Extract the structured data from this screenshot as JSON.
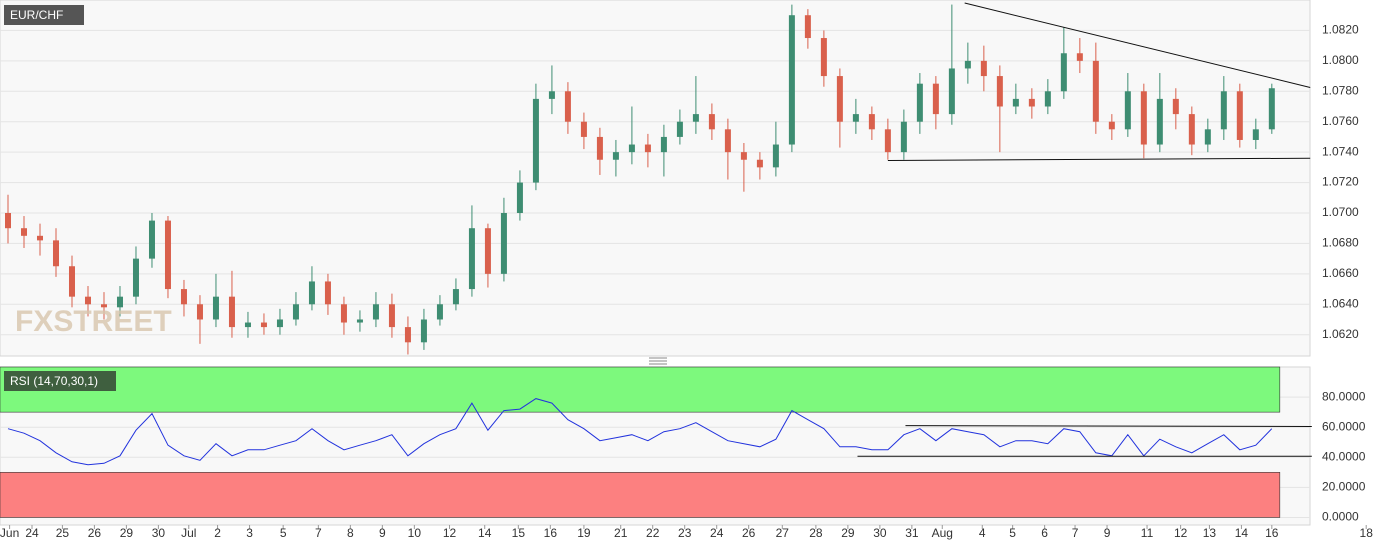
{
  "chart_data": {
    "type": "candlestick",
    "title": "EUR/CHF",
    "watermark": "FXSTREET",
    "up_color": "#3e8d72",
    "down_color": "#d9604c",
    "grid": true,
    "xlim": [
      0,
      86.7
    ],
    "xticks": [
      {
        "value": 0.6,
        "label": "Jun"
      },
      {
        "value": 2,
        "label": "24"
      },
      {
        "value": 3.9,
        "label": "25"
      },
      {
        "value": 5.9,
        "label": "26"
      },
      {
        "value": 7.9,
        "label": "29"
      },
      {
        "value": 9.9,
        "label": "30"
      },
      {
        "value": 11.8,
        "label": "Jul"
      },
      {
        "value": 13.6,
        "label": "2"
      },
      {
        "value": 15.6,
        "label": "3"
      },
      {
        "value": 17.7,
        "label": "5"
      },
      {
        "value": 19.9,
        "label": "7"
      },
      {
        "value": 21.9,
        "label": "8"
      },
      {
        "value": 23.9,
        "label": "9"
      },
      {
        "value": 25.9,
        "label": "10"
      },
      {
        "value": 28.1,
        "label": "12"
      },
      {
        "value": 30.3,
        "label": "14"
      },
      {
        "value": 32.4,
        "label": "15"
      },
      {
        "value": 34.4,
        "label": "16"
      },
      {
        "value": 36.5,
        "label": "19"
      },
      {
        "value": 38.8,
        "label": "21"
      },
      {
        "value": 40.8,
        "label": "22"
      },
      {
        "value": 42.8,
        "label": "23"
      },
      {
        "value": 44.8,
        "label": "24"
      },
      {
        "value": 46.8,
        "label": "26"
      },
      {
        "value": 48.9,
        "label": "27"
      },
      {
        "value": 51,
        "label": "28"
      },
      {
        "value": 53,
        "label": "29"
      },
      {
        "value": 55,
        "label": "30"
      },
      {
        "value": 57,
        "label": "31"
      },
      {
        "value": 58.9,
        "label": "Aug"
      },
      {
        "value": 61.4,
        "label": "4"
      },
      {
        "value": 63.3,
        "label": "5"
      },
      {
        "value": 65.3,
        "label": "6"
      },
      {
        "value": 67.2,
        "label": "7"
      },
      {
        "value": 69.2,
        "label": "9"
      },
      {
        "value": 71.7,
        "label": "11"
      },
      {
        "value": 73.8,
        "label": "12"
      },
      {
        "value": 75.6,
        "label": "13"
      },
      {
        "value": 77.6,
        "label": "14"
      },
      {
        "value": 79.5,
        "label": "16"
      },
      {
        "value": 85.4,
        "label": "18"
      }
    ],
    "ylim": [
      1.0606,
      1.084
    ],
    "yticks": [
      {
        "value": 1.062,
        "label": "1.0620"
      },
      {
        "value": 1.064,
        "label": "1.0640"
      },
      {
        "value": 1.066,
        "label": "1.0660"
      },
      {
        "value": 1.068,
        "label": "1.0680"
      },
      {
        "value": 1.07,
        "label": "1.0700"
      },
      {
        "value": 1.072,
        "label": "1.0720"
      },
      {
        "value": 1.074,
        "label": "1.0740"
      },
      {
        "value": 1.076,
        "label": "1.0760"
      },
      {
        "value": 1.078,
        "label": "1.0780"
      },
      {
        "value": 1.08,
        "label": "1.0800"
      },
      {
        "value": 1.082,
        "label": "1.0820"
      }
    ],
    "open": [
      1.07,
      1.069,
      1.0685,
      1.0682,
      1.0665,
      1.0645,
      1.064,
      1.0638,
      1.0645,
      1.067,
      1.0695,
      1.065,
      1.064,
      1.063,
      1.0645,
      1.0625,
      1.0628,
      1.0625,
      1.063,
      1.064,
      1.0655,
      1.064,
      1.0628,
      1.063,
      1.064,
      1.0625,
      1.0615,
      1.063,
      1.064,
      1.065,
      1.069,
      1.066,
      1.07,
      1.072,
      1.0775,
      1.078,
      1.076,
      1.075,
      1.0735,
      1.074,
      1.0745,
      1.074,
      1.075,
      1.076,
      1.0765,
      1.0755,
      1.074,
      1.0735,
      1.073,
      1.0745,
      1.083,
      1.0815,
      1.079,
      1.076,
      1.0765,
      1.0755,
      1.074,
      1.076,
      1.0785,
      1.0765,
      1.0795,
      1.08,
      1.079,
      1.077,
      1.0775,
      1.077,
      1.078,
      1.0805,
      1.08,
      1.076,
      1.0755,
      1.078,
      1.0745,
      1.0775,
      1.0765,
      1.0745,
      1.0755,
      1.078,
      1.0748,
      1.0755
    ],
    "high": [
      1.0712,
      1.0698,
      1.0693,
      1.069,
      1.0672,
      1.0652,
      1.0648,
      1.0652,
      1.0678,
      1.07,
      1.0698,
      1.0656,
      1.0646,
      1.066,
      1.0662,
      1.0635,
      1.0634,
      1.0637,
      1.0648,
      1.0665,
      1.066,
      1.0645,
      1.0636,
      1.0648,
      1.0647,
      1.0632,
      1.0637,
      1.0646,
      1.0657,
      1.0705,
      1.0693,
      1.071,
      1.0728,
      1.0785,
      1.0797,
      1.0786,
      1.0766,
      1.0756,
      1.0748,
      1.077,
      1.0752,
      1.0758,
      1.0768,
      1.079,
      1.0772,
      1.0762,
      1.0746,
      1.074,
      1.076,
      1.0837,
      1.0834,
      1.082,
      1.0795,
      1.0775,
      1.077,
      1.0762,
      1.0768,
      1.0792,
      1.079,
      1.0837,
      1.0812,
      1.081,
      1.0797,
      1.0785,
      1.0782,
      1.0788,
      1.0822,
      1.0815,
      1.0812,
      1.0765,
      1.0792,
      1.0785,
      1.0792,
      1.0782,
      1.077,
      1.0762,
      1.079,
      1.0785,
      1.0762,
      1.0785
    ],
    "low": [
      1.068,
      1.0677,
      1.0672,
      1.0658,
      1.0638,
      1.0632,
      1.063,
      1.0632,
      1.064,
      1.0664,
      1.0644,
      1.0632,
      1.0614,
      1.0625,
      1.0618,
      1.0618,
      1.062,
      1.062,
      1.0626,
      1.0636,
      1.0633,
      1.062,
      1.0622,
      1.0625,
      1.0618,
      1.0607,
      1.061,
      1.0626,
      1.0636,
      1.0645,
      1.0651,
      1.0655,
      1.0695,
      1.0715,
      1.0765,
      1.0752,
      1.0742,
      1.0725,
      1.0724,
      1.0732,
      1.073,
      1.0724,
      1.0745,
      1.0752,
      1.0748,
      1.0722,
      1.0714,
      1.0722,
      1.0724,
      1.074,
      1.0808,
      1.0783,
      1.0743,
      1.0752,
      1.0748,
      1.0735,
      1.0735,
      1.0752,
      1.0755,
      1.0758,
      1.0785,
      1.078,
      1.074,
      1.0765,
      1.0762,
      1.0765,
      1.0775,
      1.0792,
      1.0752,
      1.0748,
      1.075,
      1.0736,
      1.074,
      1.0755,
      1.0738,
      1.074,
      1.0748,
      1.0743,
      1.0742,
      1.0752
    ],
    "close": [
      1.069,
      1.0685,
      1.0682,
      1.0665,
      1.0645,
      1.064,
      1.0638,
      1.0645,
      1.067,
      1.0695,
      1.065,
      1.064,
      1.063,
      1.0645,
      1.0625,
      1.0628,
      1.0625,
      1.063,
      1.064,
      1.0655,
      1.064,
      1.0628,
      1.063,
      1.064,
      1.0625,
      1.0615,
      1.063,
      1.064,
      1.065,
      1.069,
      1.066,
      1.07,
      1.072,
      1.0775,
      1.078,
      1.076,
      1.075,
      1.0735,
      1.074,
      1.0745,
      1.074,
      1.075,
      1.076,
      1.0765,
      1.0755,
      1.074,
      1.0735,
      1.073,
      1.0745,
      1.083,
      1.0815,
      1.079,
      1.076,
      1.0765,
      1.0755,
      1.074,
      1.076,
      1.0785,
      1.0765,
      1.0795,
      1.08,
      1.079,
      1.077,
      1.0775,
      1.077,
      1.078,
      1.0805,
      1.08,
      1.076,
      1.0755,
      1.078,
      1.0745,
      1.0775,
      1.0765,
      1.0745,
      1.0755,
      1.078,
      1.0748,
      1.0755,
      1.0782
    ],
    "trendlines": [
      {
        "x": [
          60.3,
          81.9
        ],
        "y": [
          1.0838,
          1.07825
        ]
      },
      {
        "x": [
          55.5,
          81.9
        ],
        "y": [
          1.07345,
          1.0736
        ]
      }
    ],
    "rsi": {
      "label": "RSI (14,70,30,1)",
      "color": "#2233dd",
      "upper": 70,
      "lower": 30,
      "upper_color": "#7df97d",
      "lower_color": "#fc8080",
      "ylim": [
        -5,
        100
      ],
      "yticks": [
        {
          "value": 0,
          "label": "0.0000"
        },
        {
          "value": 20,
          "label": "20.0000"
        },
        {
          "value": 40,
          "label": "40.0000"
        },
        {
          "value": 60,
          "label": "60.0000"
        },
        {
          "value": 80,
          "label": "80.0000"
        }
      ],
      "values": [
        59,
        56,
        51,
        43,
        37,
        35,
        36,
        41,
        58,
        69,
        48,
        41,
        38,
        49,
        41,
        45,
        45,
        48,
        51,
        59,
        51,
        45,
        48,
        51,
        55,
        41,
        49,
        55,
        59,
        76,
        58,
        71,
        72,
        79,
        76,
        65,
        59,
        51,
        53,
        55,
        51,
        57,
        59,
        63,
        57,
        51,
        49,
        47,
        52,
        71,
        65,
        59,
        47,
        47,
        45,
        45,
        55,
        59,
        51,
        59,
        57,
        55,
        47,
        51,
        51,
        49,
        59,
        57,
        43,
        41,
        55,
        41,
        52,
        47,
        43,
        49,
        55,
        45,
        48,
        59
      ],
      "trendlines": [
        {
          "x": [
            56.6,
            82
          ],
          "y": [
            61,
            60.5
          ]
        },
        {
          "x": [
            53.6,
            82
          ],
          "y": [
            40.7,
            40.7
          ]
        }
      ]
    }
  }
}
